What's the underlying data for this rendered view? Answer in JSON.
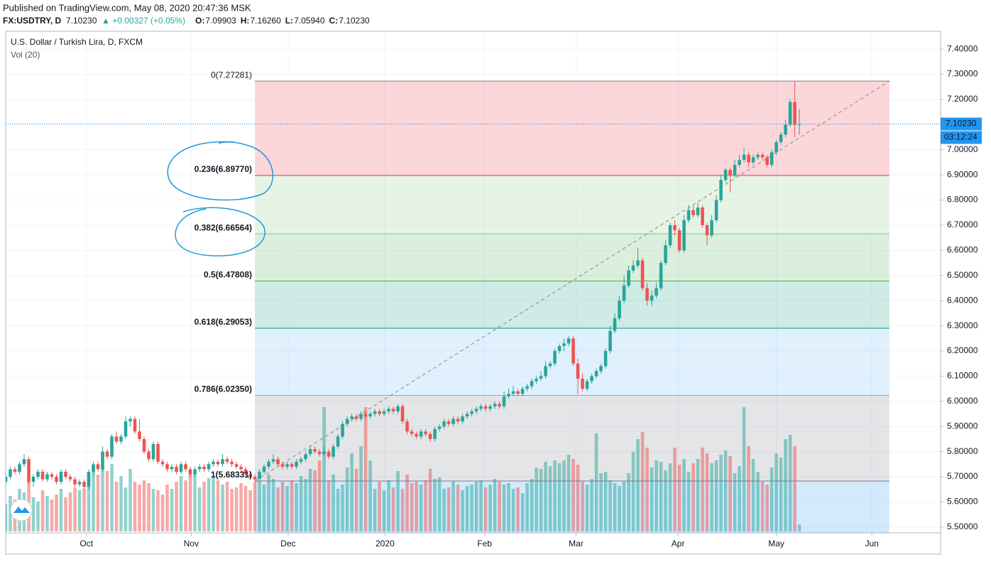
{
  "header": {
    "published": "Published on TradingView.com, May 08, 2020 20:47:36 MSK",
    "symbol": "FX:USDTRY, D",
    "last": "7.10230",
    "change": "▲ +0.00327 (+0.05%)",
    "ohlc": [
      {
        "k": "O:",
        "v": "7.09903"
      },
      {
        "k": "H:",
        "v": "7.16260"
      },
      {
        "k": "L:",
        "v": "7.05940"
      },
      {
        "k": "C:",
        "v": "7.10230"
      }
    ]
  },
  "chart_data": {
    "type": "candlestick",
    "title": "U.S. Dollar / Turkish Lira, D, FXCM",
    "volume_title": "Vol (20)",
    "up_color": "#26a69a",
    "down_color": "#ef5350",
    "xlim": [
      0,
      202.6
    ],
    "ylim": [
      5.477,
      7.471
    ],
    "xticks": [
      {
        "value": 17.5,
        "label": "Oct"
      },
      {
        "value": 40.2,
        "label": "Nov"
      },
      {
        "value": 61.2,
        "label": "Dec"
      },
      {
        "value": 82.2,
        "label": "2020"
      },
      {
        "value": 103.8,
        "label": "Feb"
      },
      {
        "value": 123.6,
        "label": "Mar"
      },
      {
        "value": 145.7,
        "label": "Apr"
      },
      {
        "value": 167,
        "label": "May"
      },
      {
        "value": 187.7,
        "label": "Jun"
      }
    ],
    "yticks": [
      {
        "value": 5.5,
        "label": "5.50000"
      },
      {
        "value": 5.6,
        "label": "5.60000"
      },
      {
        "value": 5.7,
        "label": "5.70000"
      },
      {
        "value": 5.8,
        "label": "5.80000"
      },
      {
        "value": 5.9,
        "label": "5.90000"
      },
      {
        "value": 6.0,
        "label": "6.00000"
      },
      {
        "value": 6.1,
        "label": "6.10000"
      },
      {
        "value": 6.2,
        "label": "6.20000"
      },
      {
        "value": 6.3,
        "label": "6.30000"
      },
      {
        "value": 6.4,
        "label": "6.40000"
      },
      {
        "value": 6.5,
        "label": "6.50000"
      },
      {
        "value": 6.6,
        "label": "6.60000"
      },
      {
        "value": 6.7,
        "label": "6.70000"
      },
      {
        "value": 6.8,
        "label": "6.80000"
      },
      {
        "value": 6.9,
        "label": "6.90000"
      },
      {
        "value": 7.0,
        "label": "7.00000"
      },
      {
        "value": 7.1,
        "label": "7.10000"
      },
      {
        "value": 7.2,
        "label": "7.20000"
      },
      {
        "value": 7.3,
        "label": "7.30000"
      },
      {
        "value": 7.4,
        "label": "7.40000"
      }
    ],
    "grid": true,
    "last_price": {
      "value": 7.1023,
      "label": "7.10230",
      "countdown": "03:12:24",
      "color": "#2196f3"
    },
    "fib": {
      "x": [
        54,
        191.5
      ],
      "levels": [
        {
          "value": 7.27281,
          "label": "0(7.27281)",
          "color": "#787b86"
        },
        {
          "value": 6.8977,
          "label": "0.236(6.89770)",
          "color": "#f23645"
        },
        {
          "value": 6.66564,
          "label": "0.382(6.66564)",
          "color": "#81c784"
        },
        {
          "value": 6.47808,
          "label": "0.5(6.47808)",
          "color": "#4caf50"
        },
        {
          "value": 6.29053,
          "label": "0.618(6.29053)",
          "color": "#089981"
        },
        {
          "value": 6.0235,
          "label": "0.786(6.02350)",
          "color": "#64b5f6"
        },
        {
          "value": 5.68331,
          "label": "1(5.68331)",
          "color": "#787b86"
        }
      ]
    },
    "ohlc": [
      [
        5.68,
        5.72,
        5.67,
        5.7
      ],
      [
        5.7,
        5.74,
        5.69,
        5.73
      ],
      [
        5.73,
        5.74,
        5.71,
        5.72
      ],
      [
        5.72,
        5.76,
        5.71,
        5.75
      ],
      [
        5.75,
        5.79,
        5.74,
        5.77
      ],
      [
        5.77,
        5.78,
        5.67,
        5.68
      ],
      [
        5.68,
        5.71,
        5.66,
        5.7
      ],
      [
        5.7,
        5.73,
        5.69,
        5.72
      ],
      [
        5.72,
        5.73,
        5.68,
        5.69
      ],
      [
        5.69,
        5.72,
        5.68,
        5.71
      ],
      [
        5.71,
        5.72,
        5.69,
        5.7
      ],
      [
        5.7,
        5.71,
        5.67,
        5.68
      ],
      [
        5.68,
        5.73,
        5.67,
        5.72
      ],
      [
        5.72,
        5.73,
        5.69,
        5.7
      ],
      [
        5.7,
        5.71,
        5.68,
        5.69
      ],
      [
        5.69,
        5.7,
        5.66,
        5.67
      ],
      [
        5.67,
        5.69,
        5.66,
        5.68
      ],
      [
        5.68,
        5.69,
        5.65,
        5.66
      ],
      [
        5.66,
        5.73,
        5.65,
        5.72
      ],
      [
        5.72,
        5.76,
        5.71,
        5.75
      ],
      [
        5.75,
        5.76,
        5.72,
        5.73
      ],
      [
        5.73,
        5.82,
        5.72,
        5.8
      ],
      [
        5.8,
        5.81,
        5.77,
        5.78
      ],
      [
        5.78,
        5.87,
        5.77,
        5.86
      ],
      [
        5.86,
        5.88,
        5.83,
        5.84
      ],
      [
        5.84,
        5.87,
        5.83,
        5.86
      ],
      [
        5.86,
        5.94,
        5.85,
        5.92
      ],
      [
        5.92,
        5.94,
        5.9,
        5.93
      ],
      [
        5.93,
        5.94,
        5.87,
        5.88
      ],
      [
        5.88,
        5.93,
        5.84,
        5.85
      ],
      [
        5.85,
        5.86,
        5.79,
        5.8
      ],
      [
        5.8,
        5.81,
        5.76,
        5.77
      ],
      [
        5.77,
        5.84,
        5.76,
        5.83
      ],
      [
        5.83,
        5.84,
        5.75,
        5.76
      ],
      [
        5.76,
        5.77,
        5.74,
        5.75
      ],
      [
        5.75,
        5.76,
        5.72,
        5.73
      ],
      [
        5.73,
        5.75,
        5.72,
        5.74
      ],
      [
        5.74,
        5.75,
        5.71,
        5.72
      ],
      [
        5.72,
        5.76,
        5.71,
        5.75
      ],
      [
        5.75,
        5.76,
        5.72,
        5.73
      ],
      [
        5.73,
        5.74,
        5.7,
        5.71
      ],
      [
        5.71,
        5.74,
        5.7,
        5.73
      ],
      [
        5.73,
        5.75,
        5.72,
        5.74
      ],
      [
        5.74,
        5.75,
        5.72,
        5.73
      ],
      [
        5.73,
        5.76,
        5.72,
        5.75
      ],
      [
        5.75,
        5.77,
        5.74,
        5.76
      ],
      [
        5.76,
        5.77,
        5.74,
        5.75
      ],
      [
        5.75,
        5.79,
        5.74,
        5.77
      ],
      [
        5.77,
        5.78,
        5.75,
        5.76
      ],
      [
        5.76,
        5.77,
        5.74,
        5.75
      ],
      [
        5.75,
        5.76,
        5.73,
        5.74
      ],
      [
        5.74,
        5.75,
        5.72,
        5.73
      ],
      [
        5.73,
        5.74,
        5.7,
        5.71
      ],
      [
        5.71,
        5.72,
        5.69,
        5.7
      ],
      [
        5.7,
        5.71,
        5.68331,
        5.69
      ],
      [
        5.69,
        5.73,
        5.69,
        5.72
      ],
      [
        5.72,
        5.75,
        5.71,
        5.74
      ],
      [
        5.74,
        5.77,
        5.73,
        5.76
      ],
      [
        5.76,
        5.79,
        5.75,
        5.77
      ],
      [
        5.77,
        5.78,
        5.74,
        5.75
      ],
      [
        5.75,
        5.76,
        5.73,
        5.74
      ],
      [
        5.74,
        5.76,
        5.73,
        5.75
      ],
      [
        5.75,
        5.76,
        5.73,
        5.74
      ],
      [
        5.74,
        5.77,
        5.73,
        5.76
      ],
      [
        5.76,
        5.78,
        5.75,
        5.77
      ],
      [
        5.77,
        5.8,
        5.76,
        5.79
      ],
      [
        5.79,
        5.82,
        5.78,
        5.81
      ],
      [
        5.81,
        5.82,
        5.79,
        5.8
      ],
      [
        5.8,
        5.81,
        5.78,
        5.79
      ],
      [
        5.79,
        5.82,
        5.78,
        5.8
      ],
      [
        5.8,
        5.81,
        5.77,
        5.78
      ],
      [
        5.78,
        5.83,
        5.77,
        5.82
      ],
      [
        5.82,
        5.87,
        5.81,
        5.86
      ],
      [
        5.86,
        5.92,
        5.85,
        5.91
      ],
      [
        5.91,
        5.94,
        5.9,
        5.93
      ],
      [
        5.93,
        5.95,
        5.92,
        5.94
      ],
      [
        5.94,
        5.95,
        5.92,
        5.93
      ],
      [
        5.93,
        5.96,
        5.92,
        5.95
      ],
      [
        5.95,
        5.96,
        5.93,
        5.94
      ],
      [
        5.94,
        5.96,
        5.93,
        5.95
      ],
      [
        5.95,
        5.97,
        5.94,
        5.96
      ],
      [
        5.96,
        5.97,
        5.94,
        5.95
      ],
      [
        5.95,
        5.97,
        5.94,
        5.96
      ],
      [
        5.96,
        5.98,
        5.95,
        5.97
      ],
      [
        5.97,
        5.98,
        5.95,
        5.96
      ],
      [
        5.96,
        5.99,
        5.95,
        5.98
      ],
      [
        5.98,
        5.99,
        5.91,
        5.92
      ],
      [
        5.92,
        5.93,
        5.87,
        5.88
      ],
      [
        5.88,
        5.89,
        5.86,
        5.87
      ],
      [
        5.87,
        5.88,
        5.85,
        5.86
      ],
      [
        5.86,
        5.89,
        5.85,
        5.88
      ],
      [
        5.88,
        5.89,
        5.86,
        5.87
      ],
      [
        5.87,
        5.88,
        5.84,
        5.85
      ],
      [
        5.85,
        5.9,
        5.84,
        5.89
      ],
      [
        5.89,
        5.91,
        5.88,
        5.9
      ],
      [
        5.9,
        5.93,
        5.89,
        5.92
      ],
      [
        5.92,
        5.93,
        5.9,
        5.91
      ],
      [
        5.91,
        5.94,
        5.9,
        5.93
      ],
      [
        5.93,
        5.94,
        5.91,
        5.92
      ],
      [
        5.92,
        5.95,
        5.91,
        5.94
      ],
      [
        5.94,
        5.96,
        5.93,
        5.95
      ],
      [
        5.95,
        5.97,
        5.94,
        5.96
      ],
      [
        5.96,
        5.98,
        5.95,
        5.97
      ],
      [
        5.97,
        5.99,
        5.96,
        5.98
      ],
      [
        5.98,
        5.99,
        5.96,
        5.97
      ],
      [
        5.97,
        5.99,
        5.96,
        5.98
      ],
      [
        5.98,
        6.0,
        5.97,
        5.99
      ],
      [
        5.99,
        6.0,
        5.97,
        5.98
      ],
      [
        5.98,
        6.04,
        5.97,
        6.02
      ],
      [
        6.02,
        6.05,
        6.01,
        6.03
      ],
      [
        6.03,
        6.06,
        6.02,
        6.04
      ],
      [
        6.04,
        6.05,
        6.02,
        6.03
      ],
      [
        6.03,
        6.06,
        6.02,
        6.05
      ],
      [
        6.05,
        6.07,
        6.04,
        6.06
      ],
      [
        6.06,
        6.09,
        6.05,
        6.08
      ],
      [
        6.08,
        6.1,
        6.07,
        6.09
      ],
      [
        6.09,
        6.12,
        6.08,
        6.1
      ],
      [
        6.1,
        6.16,
        6.09,
        6.14
      ],
      [
        6.14,
        6.16,
        6.13,
        6.15
      ],
      [
        6.15,
        6.21,
        6.14,
        6.2
      ],
      [
        6.2,
        6.23,
        6.19,
        6.22
      ],
      [
        6.22,
        6.25,
        6.2,
        6.23
      ],
      [
        6.23,
        6.26,
        6.22,
        6.25
      ],
      [
        6.25,
        6.26,
        6.14,
        6.15
      ],
      [
        6.15,
        6.17,
        6.03,
        6.09
      ],
      [
        6.09,
        6.11,
        6.04,
        6.05
      ],
      [
        6.05,
        6.09,
        6.04,
        6.08
      ],
      [
        6.08,
        6.11,
        6.07,
        6.1
      ],
      [
        6.1,
        6.13,
        6.09,
        6.12
      ],
      [
        6.12,
        6.15,
        6.11,
        6.14
      ],
      [
        6.14,
        6.21,
        6.13,
        6.2
      ],
      [
        6.2,
        6.3,
        6.19,
        6.28
      ],
      [
        6.28,
        6.35,
        6.27,
        6.33
      ],
      [
        6.33,
        6.42,
        6.32,
        6.4
      ],
      [
        6.4,
        6.5,
        6.39,
        6.46
      ],
      [
        6.46,
        6.54,
        6.45,
        6.52
      ],
      [
        6.52,
        6.56,
        6.51,
        6.54
      ],
      [
        6.54,
        6.61,
        6.53,
        6.56
      ],
      [
        6.56,
        6.57,
        6.44,
        6.45
      ],
      [
        6.45,
        6.47,
        6.38,
        6.4
      ],
      [
        6.4,
        6.44,
        6.38,
        6.42
      ],
      [
        6.42,
        6.47,
        6.41,
        6.45
      ],
      [
        6.45,
        6.56,
        6.44,
        6.55
      ],
      [
        6.55,
        6.64,
        6.54,
        6.62
      ],
      [
        6.62,
        6.71,
        6.61,
        6.7
      ],
      [
        6.7,
        6.72,
        6.66,
        6.68
      ],
      [
        6.68,
        6.69,
        6.59,
        6.6
      ],
      [
        6.6,
        6.74,
        6.59,
        6.72
      ],
      [
        6.72,
        6.78,
        6.71,
        6.76
      ],
      [
        6.76,
        6.78,
        6.73,
        6.74
      ],
      [
        6.74,
        6.79,
        6.73,
        6.77
      ],
      [
        6.77,
        6.78,
        6.69,
        6.7
      ],
      [
        6.7,
        6.71,
        6.62,
        6.66
      ],
      [
        6.66,
        6.74,
        6.65,
        6.72
      ],
      [
        6.72,
        6.82,
        6.71,
        6.8
      ],
      [
        6.8,
        6.9,
        6.79,
        6.88
      ],
      [
        6.88,
        6.93,
        6.87,
        6.92
      ],
      [
        6.92,
        6.93,
        6.83,
        6.9
      ],
      [
        6.9,
        6.96,
        6.89,
        6.94
      ],
      [
        6.94,
        6.98,
        6.93,
        6.96
      ],
      [
        6.96,
        7.01,
        6.95,
        6.98
      ],
      [
        6.98,
        6.99,
        6.93,
        6.95
      ],
      [
        6.95,
        6.98,
        6.94,
        6.97
      ],
      [
        6.97,
        6.99,
        6.96,
        6.98
      ],
      [
        6.98,
        6.99,
        6.96,
        6.97
      ],
      [
        6.97,
        6.98,
        6.93,
        6.94
      ],
      [
        6.94,
        7.0,
        6.93,
        6.99
      ],
      [
        6.99,
        7.04,
        6.98,
        7.03
      ],
      [
        7.03,
        7.07,
        7.02,
        7.06
      ],
      [
        7.06,
        7.12,
        7.05,
        7.1
      ],
      [
        7.1,
        7.2,
        7.09,
        7.19
      ],
      [
        7.19,
        7.27281,
        7.05,
        7.09903
      ],
      [
        7.09903,
        7.1626,
        7.0594,
        7.1023
      ]
    ],
    "volume": [
      38,
      50,
      45,
      60,
      55,
      70,
      48,
      42,
      58,
      50,
      45,
      52,
      60,
      48,
      55,
      62,
      58,
      60,
      75,
      88,
      80,
      92,
      85,
      95,
      70,
      78,
      62,
      88,
      70,
      66,
      72,
      68,
      60,
      58,
      52,
      66,
      60,
      70,
      78,
      72,
      85,
      80,
      62,
      70,
      75,
      78,
      72,
      66,
      70,
      60,
      62,
      68,
      64,
      58,
      70,
      72,
      66,
      80,
      74,
      62,
      70,
      64,
      72,
      68,
      78,
      74,
      88,
      86,
      100,
      175,
      72,
      80,
      60,
      66,
      90,
      110,
      88,
      120,
      175,
      100,
      60,
      70,
      58,
      72,
      62,
      85,
      60,
      80,
      68,
      70,
      66,
      72,
      88,
      74,
      76,
      60,
      62,
      70,
      66,
      58,
      64,
      66,
      70,
      72,
      62,
      66,
      74,
      70,
      66,
      68,
      60,
      62,
      54,
      68,
      74,
      90,
      88,
      98,
      92,
      100,
      96,
      100,
      108,
      102,
      94,
      70,
      66,
      74,
      138,
      82,
      84,
      72,
      68,
      64,
      70,
      82,
      112,
      130,
      140,
      118,
      90,
      100,
      98,
      86,
      96,
      118,
      94,
      102,
      84,
      96,
      102,
      118,
      110,
      96,
      100,
      108,
      114,
      106,
      82,
      92,
      175,
      120,
      102,
      84,
      70,
      66,
      90,
      110,
      104,
      130,
      136,
      120,
      10
    ]
  }
}
